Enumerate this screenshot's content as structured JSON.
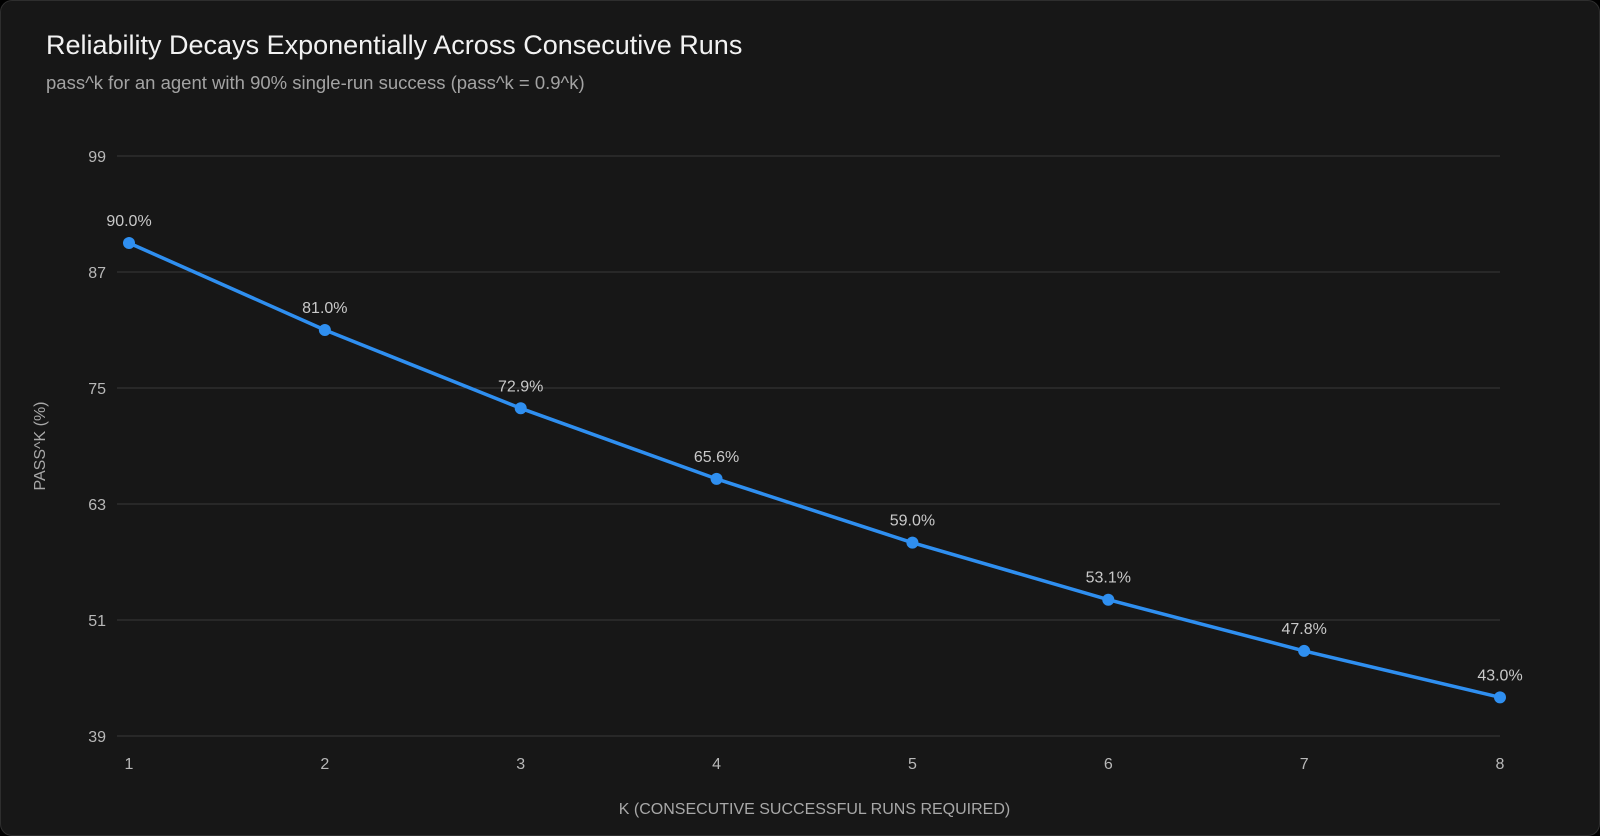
{
  "header": {
    "title": "Reliability Decays Exponentially Across Consecutive Runs",
    "subtitle": "pass^k for an agent with 90% single-run success (pass^k = 0.9^k)"
  },
  "colors": {
    "background": "#171717",
    "series": "#2f8ff0",
    "grid": "#3a3a3a"
  },
  "chart_data": {
    "type": "line",
    "title": "Reliability Decays Exponentially Across Consecutive Runs",
    "subtitle": "pass^k for an agent with 90% single-run success (pass^k = 0.9^k)",
    "xlabel": "K (CONSECUTIVE SUCCESSFUL RUNS REQUIRED)",
    "ylabel": "PASS^K (%)",
    "x": [
      1,
      2,
      3,
      4,
      5,
      6,
      7,
      8
    ],
    "values": [
      90.0,
      81.0,
      72.9,
      65.6,
      59.0,
      53.1,
      47.8,
      43.0
    ],
    "data_labels": [
      "90.0%",
      "81.0%",
      "72.9%",
      "65.6%",
      "59.0%",
      "53.1%",
      "47.8%",
      "43.0%"
    ],
    "x_ticks": [
      "1",
      "2",
      "3",
      "4",
      "5",
      "6",
      "7",
      "8"
    ],
    "y_ticks": [
      39,
      51,
      63,
      75,
      87,
      99
    ],
    "xlim": [
      1,
      8
    ],
    "ylim": [
      39,
      99
    ],
    "grid": true,
    "grid_axis": "y",
    "legend": "none"
  }
}
